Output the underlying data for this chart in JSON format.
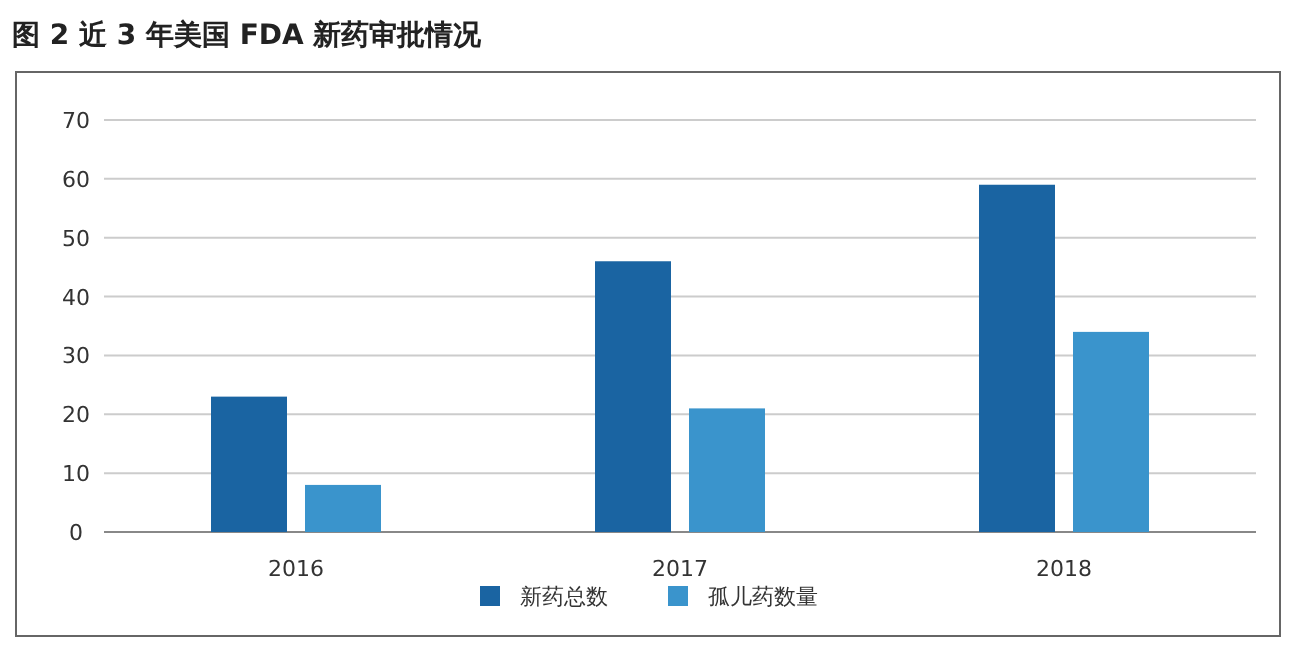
{
  "chart_data": {
    "type": "bar",
    "title": "图 2  近 3 年美国 FDA 新药审批情况",
    "categories": [
      "2016",
      "2017",
      "2018"
    ],
    "series": [
      {
        "name": "新药总数",
        "color": "#1a64a2",
        "values": [
          23,
          46,
          59
        ]
      },
      {
        "name": "孤儿药数量",
        "color": "#3a94cc",
        "values": [
          8,
          21,
          34
        ]
      }
    ],
    "ylim": [
      0,
      70
    ],
    "yticks": [
      0,
      10,
      20,
      30,
      40,
      50,
      60,
      70
    ],
    "grid": "y",
    "legend": "bottom"
  }
}
